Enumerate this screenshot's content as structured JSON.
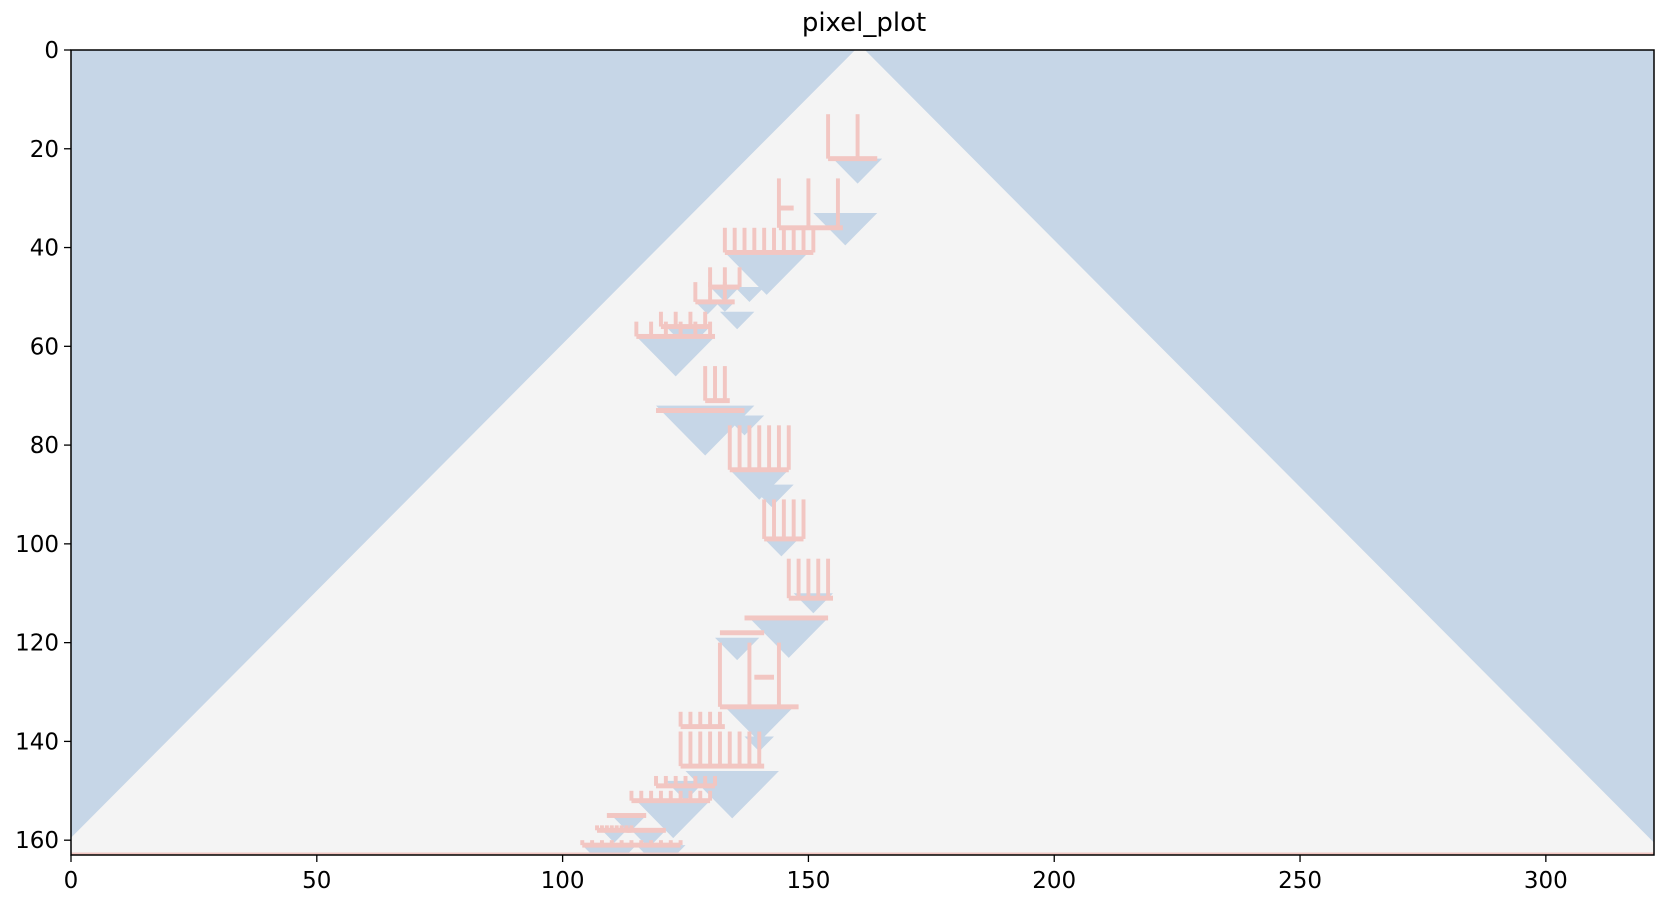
{
  "chart_data": {
    "type": "heatmap",
    "title": "pixel_plot",
    "xlabel": "",
    "ylabel": "",
    "xlim": [
      0,
      322
    ],
    "ylim": [
      163,
      0
    ],
    "y_inverted": true,
    "x_ticks": [
      0,
      50,
      100,
      150,
      200,
      250,
      300
    ],
    "y_ticks": [
      0,
      20,
      40,
      60,
      80,
      100,
      120,
      140,
      160
    ],
    "grid": false,
    "legend": "none",
    "colors": {
      "background": "#c6d6e7",
      "cone": "#f4f4f4",
      "edge": "#f2c6c2"
    },
    "apex": [
      160,
      0
    ],
    "cone_base_row": 162,
    "bottom_edge_row": 163,
    "cone_tilt_per_row": 0.99,
    "triangles": [
      [
        155,
        165,
        22
      ],
      [
        151,
        164,
        33
      ],
      [
        133,
        150,
        41
      ],
      [
        130,
        136,
        48
      ],
      [
        135,
        141,
        48
      ],
      [
        127,
        132,
        51
      ],
      [
        131,
        135,
        51
      ],
      [
        132,
        139,
        53
      ],
      [
        121,
        130,
        56
      ],
      [
        115,
        131,
        58
      ],
      [
        119,
        139,
        72
      ],
      [
        133,
        141,
        74
      ],
      [
        134,
        146,
        85
      ],
      [
        138,
        147,
        88
      ],
      [
        141,
        148,
        99
      ],
      [
        147,
        155,
        110
      ],
      [
        138,
        154,
        115
      ],
      [
        131,
        140,
        119
      ],
      [
        133,
        147,
        133
      ],
      [
        137,
        143,
        139
      ],
      [
        125,
        144,
        146
      ],
      [
        121,
        129,
        148
      ],
      [
        115,
        130,
        152
      ],
      [
        110,
        117,
        155
      ],
      [
        108,
        113,
        158
      ],
      [
        114,
        121,
        158
      ],
      [
        104,
        115,
        161
      ],
      [
        115,
        125,
        161
      ]
    ],
    "edge_segments": [
      [
        154,
        164,
        22,
        13,
        6
      ],
      [
        144,
        157,
        36,
        26,
        6
      ],
      [
        144,
        147,
        32,
        41,
        3
      ],
      [
        133,
        151,
        41,
        36,
        2
      ],
      [
        130,
        136,
        48,
        44,
        3
      ],
      [
        127,
        135,
        51,
        47,
        3
      ],
      [
        120,
        130,
        56,
        53,
        3
      ],
      [
        115,
        131,
        58,
        55,
        3
      ],
      [
        129,
        134,
        71,
        64,
        2
      ],
      [
        119,
        137,
        73,
        73,
        1
      ],
      [
        134,
        146,
        85,
        76,
        2
      ],
      [
        141,
        149,
        99,
        91,
        2
      ],
      [
        146,
        155,
        111,
        103,
        2
      ],
      [
        137,
        154,
        115,
        115,
        1
      ],
      [
        132,
        141,
        118,
        118,
        1
      ],
      [
        132,
        148,
        133,
        120,
        6
      ],
      [
        139,
        143,
        127,
        127,
        1
      ],
      [
        124,
        133,
        137,
        134,
        2
      ],
      [
        124,
        141,
        145,
        138,
        2
      ],
      [
        119,
        131,
        149,
        147,
        2
      ],
      [
        114,
        130,
        152,
        150,
        2
      ],
      [
        109,
        117,
        155,
        155,
        1
      ],
      [
        107,
        114,
        158,
        157,
        1
      ],
      [
        113,
        121,
        158,
        158,
        1
      ],
      [
        104,
        124,
        161,
        160,
        2
      ]
    ]
  }
}
